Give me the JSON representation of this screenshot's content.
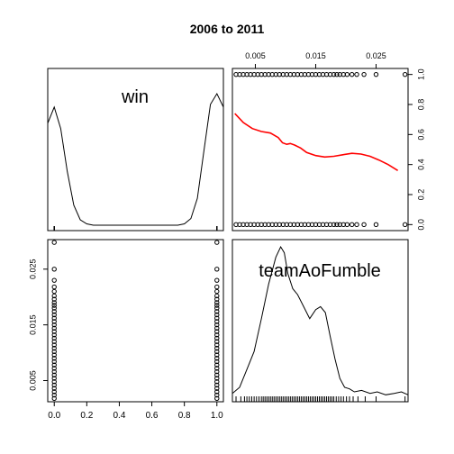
{
  "title": "2006 to 2011",
  "chart_data": {
    "type": "scatter",
    "title": "2006 to 2011",
    "variables": [
      "win",
      "teamAoFumble"
    ],
    "win_ticks": [
      "0.0",
      "0.2",
      "0.4",
      "0.6",
      "0.8",
      "1.0"
    ],
    "fumble_ticks": [
      "0.005",
      "0.015",
      "0.025"
    ],
    "win_range": [
      -0.04,
      1.04
    ],
    "fumble_range": [
      0.0012,
      0.0303
    ],
    "win_density_panel": {
      "label": "win",
      "x": [
        -0.04,
        0.0,
        0.04,
        0.08,
        0.12,
        0.16,
        0.2,
        0.24,
        0.28,
        0.32,
        0.36,
        0.4,
        0.44,
        0.48,
        0.52,
        0.56,
        0.6,
        0.64,
        0.68,
        0.72,
        0.76,
        0.8,
        0.84,
        0.88,
        0.92,
        0.96,
        1.0,
        1.04
      ],
      "y": [
        0.76,
        0.88,
        0.72,
        0.4,
        0.15,
        0.04,
        0.01,
        0.0,
        0.0,
        0.0,
        0.0,
        0.0,
        0.0,
        0.0,
        0.0,
        0.0,
        0.0,
        0.0,
        0.0,
        0.0,
        0.0,
        0.01,
        0.05,
        0.2,
        0.55,
        0.9,
        0.98,
        0.88
      ],
      "rug": [
        0.0,
        1.0
      ]
    },
    "fumble_density_panel": {
      "label": "teamAoFumble",
      "x": [
        0.0012,
        0.0024,
        0.0036,
        0.0048,
        0.006,
        0.0072,
        0.0084,
        0.0092,
        0.0098,
        0.0104,
        0.0112,
        0.012,
        0.013,
        0.014,
        0.015,
        0.0158,
        0.0166,
        0.0174,
        0.0182,
        0.019,
        0.0198,
        0.0206,
        0.0214,
        0.0226,
        0.024,
        0.0252,
        0.0266,
        0.028,
        0.0292,
        0.0303
      ],
      "y": [
        0.02,
        0.06,
        0.18,
        0.3,
        0.52,
        0.75,
        0.93,
        1.0,
        0.96,
        0.82,
        0.72,
        0.68,
        0.6,
        0.52,
        0.58,
        0.6,
        0.56,
        0.4,
        0.25,
        0.12,
        0.06,
        0.05,
        0.03,
        0.04,
        0.02,
        0.03,
        0.01,
        0.02,
        0.03,
        0.01
      ],
      "rug": [
        0.0018,
        0.0026,
        0.0032,
        0.0036,
        0.004,
        0.0044,
        0.0048,
        0.0052,
        0.0056,
        0.006,
        0.0063,
        0.0066,
        0.0069,
        0.0072,
        0.0075,
        0.0078,
        0.0081,
        0.0084,
        0.0087,
        0.009,
        0.0093,
        0.0096,
        0.0099,
        0.0102,
        0.0105,
        0.0108,
        0.0111,
        0.0114,
        0.0117,
        0.012,
        0.0123,
        0.0126,
        0.0129,
        0.0132,
        0.0135,
        0.0138,
        0.0141,
        0.0144,
        0.0147,
        0.015,
        0.0153,
        0.0156,
        0.0159,
        0.0162,
        0.0165,
        0.0168,
        0.0171,
        0.0174,
        0.0177,
        0.018,
        0.0184,
        0.0188,
        0.0192,
        0.0196,
        0.0201,
        0.0206,
        0.0212,
        0.022,
        0.0232,
        0.025,
        0.0298
      ]
    },
    "scatter_fumble": [
      0.0018,
      0.0024,
      0.003,
      0.0036,
      0.0042,
      0.0048,
      0.0054,
      0.006,
      0.0066,
      0.0072,
      0.0078,
      0.0084,
      0.009,
      0.0096,
      0.0102,
      0.0108,
      0.0114,
      0.012,
      0.0126,
      0.0132,
      0.0138,
      0.0144,
      0.015,
      0.0156,
      0.0162,
      0.0168,
      0.0174,
      0.018,
      0.0185,
      0.019,
      0.0196,
      0.0202,
      0.021,
      0.0218,
      0.023,
      0.025,
      0.0298
    ],
    "loess_fit": {
      "color": "#ff0000",
      "x": [
        0.0016,
        0.003,
        0.0045,
        0.006,
        0.0075,
        0.0088,
        0.0095,
        0.0102,
        0.0108,
        0.0115,
        0.0125,
        0.0135,
        0.015,
        0.0165,
        0.018,
        0.0195,
        0.021,
        0.0225,
        0.024,
        0.0255,
        0.027,
        0.0286
      ],
      "y": [
        0.74,
        0.68,
        0.64,
        0.62,
        0.61,
        0.58,
        0.545,
        0.535,
        0.54,
        0.53,
        0.51,
        0.48,
        0.46,
        0.45,
        0.455,
        0.465,
        0.475,
        0.47,
        0.455,
        0.43,
        0.4,
        0.36
      ]
    }
  }
}
